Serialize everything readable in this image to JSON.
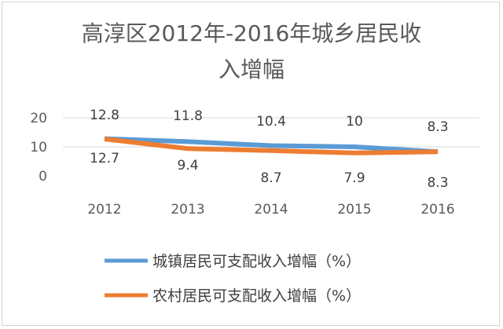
{
  "chart_data": {
    "type": "line",
    "title_line1": "高淳区2012年-2016年城乡居民收",
    "title_line2": "入增幅",
    "categories": [
      "2012",
      "2013",
      "2014",
      "2015",
      "2016"
    ],
    "y_ticks": [
      "0",
      "10",
      "20"
    ],
    "ylim": [
      0,
      20
    ],
    "grid": true,
    "legend_position": "bottom",
    "series": [
      {
        "name": "城镇居民可支配收入增幅（%）",
        "color": "#5b9bd5",
        "values": [
          12.8,
          11.8,
          10.4,
          10,
          8.3
        ],
        "labels": [
          "12.8",
          "11.8",
          "10.4",
          "10",
          "8.3"
        ]
      },
      {
        "name": "农村居民可支配收入增幅（%）",
        "color": "#ed7d31",
        "values": [
          12.7,
          9.4,
          8.7,
          7.9,
          8.3
        ],
        "labels": [
          "12.7",
          "9.4",
          "8.7",
          "7.9",
          "8.3"
        ]
      }
    ]
  }
}
